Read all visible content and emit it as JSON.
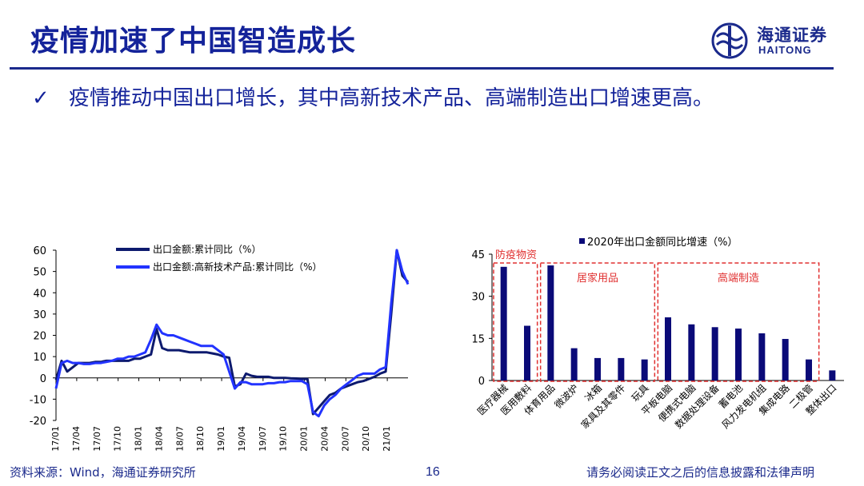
{
  "slide": {
    "title": "疫情加速了中国智造成长",
    "bullet": "疫情推动中国出口增长，其中高新技术产品、高端制造出口增速更高。",
    "logo_cn": "海通证券",
    "logo_en": "HAITONG",
    "source": "资料来源：Wind，海通证券研究所",
    "page_number": "16",
    "disclaimer": "请务必阅读正文之后的信息披露和法律声明"
  },
  "colors": {
    "primary": "#1b2a8c",
    "series1": "#0d1a6e",
    "series2": "#2233ff",
    "bar": "#0a0a78",
    "box": "#e03030"
  },
  "chart_data": [
    {
      "type": "line",
      "x_ticks": [
        "17/01",
        "17/04",
        "17/07",
        "17/10",
        "18/01",
        "18/04",
        "18/07",
        "18/10",
        "19/01",
        "19/04",
        "19/07",
        "19/10",
        "20/01",
        "20/04",
        "20/07",
        "20/10",
        "21/01"
      ],
      "ylim": [
        -20,
        60
      ],
      "y_ticks": [
        -20,
        -10,
        0,
        10,
        20,
        30,
        40,
        50,
        60
      ],
      "series": [
        {
          "name": "出口金额:累计同比（%）",
          "values": [
            -1,
            8,
            3,
            5,
            7,
            7,
            7,
            7.5,
            7.5,
            8,
            8,
            8,
            8,
            8,
            9,
            9,
            10,
            11,
            23,
            14,
            13,
            13,
            13,
            12.5,
            12,
            12,
            12,
            12,
            11.5,
            11,
            10,
            9.5,
            -4,
            -3,
            2,
            1,
            0.5,
            0.5,
            0.5,
            0,
            0,
            0,
            -0.2,
            -0.3,
            -0.5,
            -0.5,
            -17,
            -14,
            -11,
            -8,
            -7,
            -5,
            -4,
            -3,
            -2,
            -1.5,
            -0.5,
            0.5,
            2,
            3,
            30,
            60,
            48,
            45
          ]
        },
        {
          "name": "出口金额:高新技术产品:累计同比（%）",
          "values": [
            -5,
            7,
            8,
            7,
            7,
            6.5,
            6.5,
            7,
            7,
            7.5,
            8,
            9,
            9,
            10,
            10,
            11,
            12,
            18,
            25,
            21,
            20,
            20,
            19,
            18,
            17,
            16,
            15,
            15,
            15,
            13,
            11,
            3,
            -5,
            -2,
            -2,
            -3,
            -3,
            -3,
            -2.5,
            -2.5,
            -2,
            -2,
            -1.5,
            -1.5,
            -1.5,
            -3,
            -16,
            -18,
            -13,
            -10,
            -8,
            -5,
            -3,
            -1,
            1,
            2,
            2,
            2,
            4,
            5,
            35,
            60,
            50,
            44
          ]
        }
      ]
    },
    {
      "type": "bar",
      "legend": "2020年出口金额同比增速（%）",
      "categories": [
        "医疗器械",
        "医用敷料",
        "体育用品",
        "微波炉",
        "冰箱",
        "家具及其零件",
        "玩具",
        "平板电脑",
        "便携式电脑",
        "数据处理设备",
        "蓄电池",
        "风力发电机组",
        "集成电路",
        "二极管",
        "整体出口"
      ],
      "values": [
        40.5,
        19.5,
        41,
        11.5,
        8,
        8,
        7.5,
        22.5,
        20,
        19,
        18.5,
        16.8,
        14.8,
        7.5,
        3.6
      ],
      "ylim": [
        0,
        45
      ],
      "y_ticks": [
        0,
        15,
        30,
        45
      ],
      "groups": [
        {
          "label": "防疫物资",
          "from": 0,
          "to": 1
        },
        {
          "label": "居家用品",
          "from": 2,
          "to": 6
        },
        {
          "label": "高端制造",
          "from": 7,
          "to": 13
        }
      ]
    }
  ]
}
